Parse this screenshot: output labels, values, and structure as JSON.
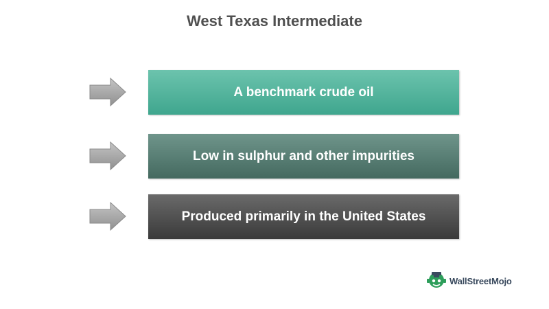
{
  "title": "West Texas Intermediate",
  "items": [
    {
      "label": "A benchmark crude oil"
    },
    {
      "label": "Low in sulphur and other impurities"
    },
    {
      "label": "Produced primarily in the United States"
    }
  ],
  "logo": {
    "text": "WallStreetMojo",
    "icon": "mojo-logo-icon"
  },
  "colors": {
    "title": "#505050",
    "box_1": "#4fb39b",
    "box_2": "#567c72",
    "box_3": "#4a4a4a",
    "arrow": "#a6a6a6",
    "logo_green": "#2e9e5b"
  }
}
